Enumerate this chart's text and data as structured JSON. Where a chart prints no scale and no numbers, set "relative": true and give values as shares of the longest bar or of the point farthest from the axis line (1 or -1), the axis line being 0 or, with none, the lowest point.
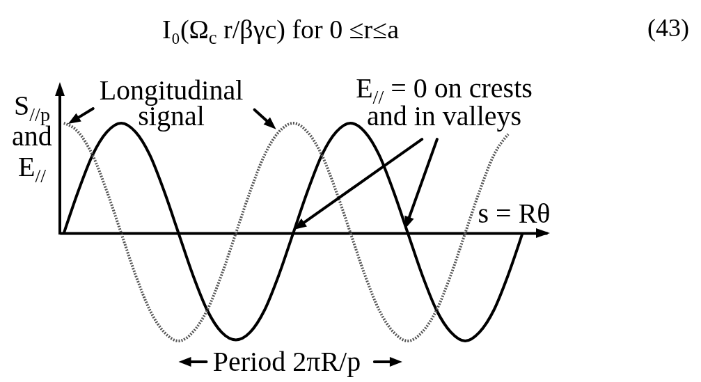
{
  "chart_data": {
    "type": "line",
    "relative": true,
    "title": "I₀(Ω$_{c}$ r/βγc) for 0 ≤r≤a",
    "xlabel": "s = Rθ",
    "ylabel": "S$_{//p}$ and E$_{//}$",
    "annotations": [
      "(43)",
      "Longitudinal signal",
      "E$_{//}$ = 0 on crests and in valleys",
      "Period 2πR/p"
    ],
    "categories": [
      null,
      null,
      null,
      null,
      null,
      null,
      null,
      null,
      null,
      null,
      null,
      null,
      null,
      null,
      null,
      null,
      null,
      null,
      null,
      null,
      null,
      null,
      null,
      null,
      null,
      null,
      null,
      null,
      null,
      null,
      null,
      null,
      null
    ],
    "series": [
      {
        "color": "#000000",
        "values": [
          0,
          0.38,
          0.71,
          0.92,
          1,
          0.92,
          0.71,
          0.38,
          0,
          -0.38,
          -0.7,
          -0.9,
          -0.97,
          -0.9,
          -0.7,
          -0.38,
          0,
          0.38,
          0.71,
          0.92,
          1,
          0.92,
          0.71,
          0.38,
          0,
          -0.38,
          -0.7,
          -0.9,
          -0.98,
          -0.9,
          -0.7,
          -0.38,
          0
        ]
      },
      {
        "color": "#555555",
        "line_style": "dotted",
        "values": [
          1,
          0.92,
          0.71,
          0.38,
          0,
          -0.38,
          -0.7,
          -0.9,
          -0.98,
          -0.9,
          -0.7,
          -0.38,
          0,
          0.38,
          0.71,
          0.92,
          1,
          0.92,
          0.71,
          0.38,
          0,
          -0.38,
          -0.7,
          -0.9,
          -0.98,
          -0.9,
          -0.7,
          -0.38,
          0,
          0.38,
          0.71,
          0.9,
          null
        ]
      }
    ]
  }
}
